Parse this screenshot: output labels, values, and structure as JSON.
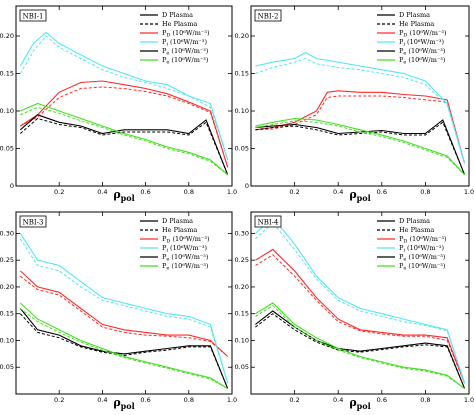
{
  "chart_data": [
    {
      "type": "line",
      "title": "NBI-1",
      "xlabel": "ρ",
      "xlabel_sub": "pol",
      "xlim": [
        0,
        1
      ],
      "ylim": [
        0,
        0.24
      ],
      "xticks": [
        "0.2",
        "0.4",
        "0.6",
        "0.8",
        "1.0"
      ],
      "yticks": [
        {
          "v": 0,
          "t": "0"
        },
        {
          "v": 0.05,
          "t": "0.05"
        },
        {
          "v": 0.1,
          "t": "0.10"
        },
        {
          "v": 0.15,
          "t": "0.15"
        },
        {
          "v": 0.2,
          "t": "0.20"
        }
      ],
      "legend": [
        {
          "label": "D   Plasma",
          "color": "#000000",
          "dash": false
        },
        {
          "label": "He  Plasma",
          "color": "#000000",
          "dash": true
        },
        {
          "label": "P_D  (10⁶W/m⁻³)",
          "color": "#ff2a2a",
          "dash": false
        },
        {
          "label": "P_i  (10⁶W/m⁻³)",
          "color": "#55e6f0",
          "dash": false
        },
        {
          "label": "P_e  (10⁶W/m⁻³)",
          "color": "#000000",
          "dash": false
        },
        {
          "label": "P_e  (10⁶W/m⁻³)",
          "color": "#44dd22",
          "dash": false
        }
      ],
      "series": [
        {
          "color": "#ff2a2a",
          "x": [
            0.02,
            0.1,
            0.2,
            0.3,
            0.4,
            0.5,
            0.6,
            0.7,
            0.8,
            0.9,
            0.98
          ],
          "solid": [
            0.08,
            0.095,
            0.125,
            0.138,
            0.14,
            0.135,
            0.13,
            0.123,
            0.112,
            0.1,
            0.025
          ],
          "dashed": [
            0.08,
            0.092,
            0.118,
            0.13,
            0.132,
            0.13,
            0.126,
            0.12,
            0.11,
            0.098,
            0.025
          ]
        },
        {
          "color": "#55e6f0",
          "x": [
            0.02,
            0.08,
            0.14,
            0.2,
            0.3,
            0.4,
            0.5,
            0.6,
            0.7,
            0.8,
            0.9,
            0.98
          ],
          "solid": [
            0.16,
            0.19,
            0.205,
            0.19,
            0.175,
            0.16,
            0.15,
            0.14,
            0.135,
            0.12,
            0.11,
            0.035
          ],
          "dashed": [
            0.15,
            0.18,
            0.2,
            0.185,
            0.17,
            0.155,
            0.145,
            0.138,
            0.13,
            0.12,
            0.105,
            0.035
          ]
        },
        {
          "color": "#000000",
          "x": [
            0.02,
            0.1,
            0.2,
            0.3,
            0.4,
            0.5,
            0.6,
            0.7,
            0.8,
            0.88,
            0.98
          ],
          "solid": [
            0.075,
            0.095,
            0.085,
            0.08,
            0.07,
            0.075,
            0.075,
            0.075,
            0.07,
            0.088,
            0.015
          ],
          "dashed": [
            0.07,
            0.09,
            0.082,
            0.078,
            0.068,
            0.072,
            0.072,
            0.072,
            0.068,
            0.085,
            0.015
          ]
        },
        {
          "color": "#44dd22",
          "x": [
            0.02,
            0.1,
            0.2,
            0.3,
            0.4,
            0.5,
            0.6,
            0.7,
            0.8,
            0.9,
            0.98
          ],
          "solid": [
            0.1,
            0.11,
            0.1,
            0.09,
            0.08,
            0.07,
            0.062,
            0.052,
            0.045,
            0.035,
            0.015
          ],
          "dashed": [
            0.095,
            0.105,
            0.097,
            0.087,
            0.078,
            0.068,
            0.06,
            0.05,
            0.043,
            0.033,
            0.015
          ]
        }
      ]
    },
    {
      "type": "line",
      "title": "NBI-2",
      "xlabel": "ρ",
      "xlabel_sub": "pol",
      "xlim": [
        0,
        1
      ],
      "ylim": [
        0,
        0.24
      ],
      "xticks": [
        "0.2",
        "0.4",
        "0.6",
        "0.8",
        "1.0"
      ],
      "yticks": [
        {
          "v": 0,
          "t": "0"
        },
        {
          "v": 0.05,
          "t": "0.05"
        },
        {
          "v": 0.1,
          "t": "0.10"
        },
        {
          "v": 0.15,
          "t": "0.15"
        },
        {
          "v": 0.2,
          "t": "0.20"
        }
      ],
      "legend": [
        {
          "label": "D   Plasma",
          "color": "#000000",
          "dash": false
        },
        {
          "label": "He  Plasma",
          "color": "#000000",
          "dash": true
        },
        {
          "label": "P_D  (10⁶W/m⁻³)",
          "color": "#ff2a2a",
          "dash": false
        },
        {
          "label": "P_i  (10⁶W/m⁻³)",
          "color": "#55e6f0",
          "dash": false
        },
        {
          "label": "P_e  (10⁶W/m⁻³)",
          "color": "#000000",
          "dash": false
        },
        {
          "label": "P_e  (10⁶W/m⁻³)",
          "color": "#44dd22",
          "dash": false
        }
      ],
      "series": [
        {
          "color": "#ff2a2a",
          "x": [
            0.02,
            0.1,
            0.2,
            0.3,
            0.35,
            0.4,
            0.5,
            0.6,
            0.7,
            0.8,
            0.9,
            0.98
          ],
          "solid": [
            0.075,
            0.078,
            0.085,
            0.1,
            0.125,
            0.127,
            0.125,
            0.125,
            0.122,
            0.12,
            0.115,
            0.03
          ],
          "dashed": [
            0.075,
            0.076,
            0.082,
            0.095,
            0.118,
            0.12,
            0.12,
            0.12,
            0.118,
            0.115,
            0.112,
            0.03
          ]
        },
        {
          "color": "#55e6f0",
          "x": [
            0.02,
            0.1,
            0.2,
            0.25,
            0.3,
            0.4,
            0.5,
            0.6,
            0.7,
            0.8,
            0.9,
            0.98
          ],
          "solid": [
            0.16,
            0.165,
            0.17,
            0.178,
            0.17,
            0.165,
            0.16,
            0.155,
            0.15,
            0.14,
            0.11,
            0.03
          ],
          "dashed": [
            0.15,
            0.158,
            0.165,
            0.17,
            0.163,
            0.158,
            0.155,
            0.15,
            0.145,
            0.135,
            0.108,
            0.03
          ]
        },
        {
          "color": "#000000",
          "x": [
            0.02,
            0.1,
            0.2,
            0.3,
            0.4,
            0.5,
            0.6,
            0.7,
            0.8,
            0.88,
            0.98
          ],
          "solid": [
            0.078,
            0.08,
            0.082,
            0.078,
            0.07,
            0.072,
            0.074,
            0.07,
            0.07,
            0.088,
            0.015
          ],
          "dashed": [
            0.075,
            0.078,
            0.08,
            0.075,
            0.068,
            0.07,
            0.072,
            0.068,
            0.068,
            0.085,
            0.015
          ]
        },
        {
          "color": "#44dd22",
          "x": [
            0.02,
            0.1,
            0.2,
            0.3,
            0.4,
            0.5,
            0.6,
            0.7,
            0.8,
            0.9,
            0.98
          ],
          "solid": [
            0.08,
            0.085,
            0.09,
            0.088,
            0.082,
            0.075,
            0.068,
            0.06,
            0.05,
            0.04,
            0.015
          ],
          "dashed": [
            0.078,
            0.082,
            0.087,
            0.085,
            0.08,
            0.072,
            0.066,
            0.058,
            0.048,
            0.038,
            0.015
          ]
        }
      ]
    },
    {
      "type": "line",
      "title": "NBI-3",
      "xlabel": "ρ",
      "xlabel_sub": "pol",
      "xlim": [
        0,
        1
      ],
      "ylim": [
        0,
        0.34
      ],
      "xticks": [
        "0.2",
        "0.4",
        "0.6",
        "0.8",
        "1.0"
      ],
      "yticks": [
        {
          "v": 0.05,
          "t": "0.05"
        },
        {
          "v": 0.1,
          "t": "0.10"
        },
        {
          "v": 0.15,
          "t": "0.15"
        },
        {
          "v": 0.2,
          "t": "0.20"
        },
        {
          "v": 0.25,
          "t": "0.25"
        },
        {
          "v": 0.3,
          "t": "0.30"
        }
      ],
      "legend": [
        {
          "label": "D   Plasma",
          "color": "#000000",
          "dash": false
        },
        {
          "label": "He  Plasma",
          "color": "#000000",
          "dash": true
        },
        {
          "label": "P_D  (10⁶W/m⁻³)",
          "color": "#ff2a2a",
          "dash": false
        },
        {
          "label": "P_i  (10⁶W/m⁻³)",
          "color": "#55e6f0",
          "dash": false
        },
        {
          "label": "P_e  (10⁶W/m⁻³)",
          "color": "#000000",
          "dash": false
        },
        {
          "label": "P_e  (10⁶W/m⁻³)",
          "color": "#44dd22",
          "dash": false
        }
      ],
      "series": [
        {
          "color": "#ff2a2a",
          "x": [
            0.02,
            0.1,
            0.2,
            0.3,
            0.4,
            0.5,
            0.6,
            0.7,
            0.8,
            0.9,
            0.98
          ],
          "solid": [
            0.23,
            0.2,
            0.19,
            0.16,
            0.13,
            0.12,
            0.115,
            0.11,
            0.11,
            0.1,
            0.07
          ],
          "dashed": [
            0.22,
            0.195,
            0.185,
            0.155,
            0.125,
            0.115,
            0.11,
            0.108,
            0.105,
            0.098,
            0.07
          ]
        },
        {
          "color": "#55e6f0",
          "x": [
            0.02,
            0.1,
            0.2,
            0.3,
            0.4,
            0.5,
            0.6,
            0.7,
            0.8,
            0.9,
            0.98
          ],
          "solid": [
            0.3,
            0.25,
            0.24,
            0.21,
            0.18,
            0.17,
            0.16,
            0.15,
            0.145,
            0.13,
            0.02
          ],
          "dashed": [
            0.29,
            0.24,
            0.23,
            0.2,
            0.175,
            0.165,
            0.155,
            0.145,
            0.14,
            0.125,
            0.02
          ]
        },
        {
          "color": "#000000",
          "x": [
            0.02,
            0.1,
            0.2,
            0.3,
            0.4,
            0.5,
            0.6,
            0.7,
            0.8,
            0.9,
            0.98
          ],
          "solid": [
            0.16,
            0.12,
            0.11,
            0.09,
            0.08,
            0.075,
            0.08,
            0.085,
            0.09,
            0.09,
            0.01
          ],
          "dashed": [
            0.15,
            0.115,
            0.105,
            0.088,
            0.078,
            0.072,
            0.078,
            0.082,
            0.088,
            0.088,
            0.01
          ]
        },
        {
          "color": "#44dd22",
          "x": [
            0.02,
            0.1,
            0.2,
            0.3,
            0.4,
            0.5,
            0.6,
            0.7,
            0.8,
            0.9,
            0.98
          ],
          "solid": [
            0.17,
            0.14,
            0.12,
            0.1,
            0.085,
            0.07,
            0.06,
            0.05,
            0.04,
            0.03,
            0.01
          ],
          "dashed": [
            0.16,
            0.135,
            0.115,
            0.097,
            0.082,
            0.068,
            0.058,
            0.048,
            0.038,
            0.028,
            0.01
          ]
        }
      ]
    },
    {
      "type": "line",
      "title": "NBI-4",
      "xlabel": "ρ",
      "xlabel_sub": "pol",
      "xlim": [
        0,
        1
      ],
      "ylim": [
        0,
        0.34
      ],
      "xticks": [
        "0.2",
        "0.4",
        "0.6",
        "0.8",
        "1.0"
      ],
      "yticks": [
        {
          "v": 0.05,
          "t": "0.05"
        },
        {
          "v": 0.1,
          "t": "0.10"
        },
        {
          "v": 0.15,
          "t": "0.15"
        },
        {
          "v": 0.2,
          "t": "0.20"
        },
        {
          "v": 0.25,
          "t": "0.25"
        },
        {
          "v": 0.3,
          "t": "0.30"
        }
      ],
      "legend": [
        {
          "label": "D   Plasma",
          "color": "#000000",
          "dash": false
        },
        {
          "label": "He  Plasma",
          "color": "#000000",
          "dash": true
        },
        {
          "label": "P_D  (10⁶W/m⁻³)",
          "color": "#ff2a2a",
          "dash": false
        },
        {
          "label": "P_i  (10⁶W/m⁻³)",
          "color": "#55e6f0",
          "dash": false
        },
        {
          "label": "P_e  (10⁶W/m⁻³)",
          "color": "#000000",
          "dash": false
        },
        {
          "label": "P_e  (10⁶W/m⁻³)",
          "color": "#44dd22",
          "dash": false
        }
      ],
      "series": [
        {
          "color": "#ff2a2a",
          "x": [
            0.02,
            0.1,
            0.2,
            0.3,
            0.4,
            0.5,
            0.6,
            0.7,
            0.8,
            0.9,
            0.98
          ],
          "solid": [
            0.25,
            0.27,
            0.23,
            0.18,
            0.14,
            0.12,
            0.115,
            0.11,
            0.11,
            0.105,
            0.02
          ],
          "dashed": [
            0.24,
            0.26,
            0.22,
            0.175,
            0.135,
            0.118,
            0.112,
            0.108,
            0.108,
            0.1,
            0.02
          ]
        },
        {
          "color": "#55e6f0",
          "x": [
            0.02,
            0.1,
            0.2,
            0.3,
            0.4,
            0.5,
            0.6,
            0.7,
            0.8,
            0.9,
            0.98
          ],
          "solid": [
            0.3,
            0.33,
            0.28,
            0.22,
            0.18,
            0.16,
            0.15,
            0.14,
            0.13,
            0.12,
            0.02
          ],
          "dashed": [
            0.29,
            0.32,
            0.27,
            0.215,
            0.175,
            0.155,
            0.145,
            0.135,
            0.128,
            0.118,
            0.02
          ]
        },
        {
          "color": "#000000",
          "x": [
            0.02,
            0.1,
            0.2,
            0.3,
            0.4,
            0.5,
            0.6,
            0.7,
            0.8,
            0.9,
            0.98
          ],
          "solid": [
            0.13,
            0.155,
            0.125,
            0.1,
            0.085,
            0.08,
            0.085,
            0.09,
            0.095,
            0.09,
            0.01
          ],
          "dashed": [
            0.125,
            0.15,
            0.12,
            0.097,
            0.082,
            0.078,
            0.083,
            0.088,
            0.092,
            0.088,
            0.01
          ]
        },
        {
          "color": "#44dd22",
          "x": [
            0.02,
            0.1,
            0.2,
            0.3,
            0.4,
            0.5,
            0.6,
            0.7,
            0.8,
            0.9,
            0.98
          ],
          "solid": [
            0.15,
            0.17,
            0.13,
            0.105,
            0.085,
            0.07,
            0.06,
            0.05,
            0.045,
            0.035,
            0.01
          ],
          "dashed": [
            0.145,
            0.165,
            0.125,
            0.1,
            0.082,
            0.068,
            0.058,
            0.048,
            0.043,
            0.033,
            0.01
          ]
        }
      ]
    }
  ]
}
